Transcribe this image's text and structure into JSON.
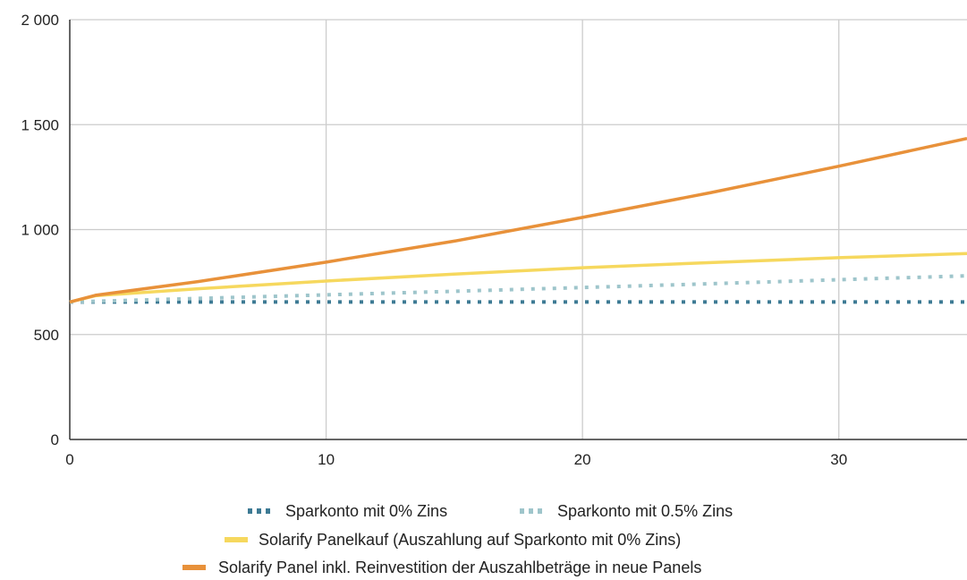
{
  "chart_data": {
    "type": "line",
    "title": "",
    "xlabel": "",
    "ylabel": "",
    "xlim": [
      0,
      35
    ],
    "ylim": [
      0,
      2000
    ],
    "x_ticks": [
      0,
      10,
      20,
      30
    ],
    "x_tick_labels": [
      "0",
      "10",
      "20",
      "30"
    ],
    "y_ticks": [
      0,
      500,
      1000,
      1500,
      2000
    ],
    "y_tick_labels": [
      "0",
      "500",
      "1 000",
      "1 500",
      "2 000"
    ],
    "grid": true,
    "legend_position": "bottom",
    "series": [
      {
        "name": "Sparkonto mit 0% Zins",
        "color": "#3d7a94",
        "style": "dotted",
        "x": [
          0,
          5,
          10,
          15,
          20,
          25,
          30,
          35
        ],
        "y": [
          655,
          655,
          655,
          655,
          655,
          655,
          655,
          655
        ]
      },
      {
        "name": "Sparkonto mit 0.5% Zins",
        "color": "#9ec5cb",
        "style": "dotted",
        "x": [
          0,
          5,
          10,
          15,
          20,
          25,
          30,
          35
        ],
        "y": [
          655,
          672,
          689,
          706,
          724,
          742,
          761,
          780
        ]
      },
      {
        "name": "Solarify Panelkauf (Auszahlung auf Sparkonto mit 0% Zins)",
        "color": "#f6d85e",
        "style": "solid",
        "x": [
          0,
          1,
          5,
          10,
          15,
          20,
          25,
          30,
          35
        ],
        "y": [
          655,
          685,
          718,
          755,
          788,
          818,
          843,
          866,
          886
        ]
      },
      {
        "name": "Solarify Panel inkl. Reinvestition der Auszahlbeträge in neue Panels",
        "color": "#e8913a",
        "style": "solid",
        "x": [
          0,
          1,
          5,
          10,
          15,
          20,
          25,
          30,
          35
        ],
        "y": [
          655,
          687,
          752,
          845,
          945,
          1058,
          1176,
          1302,
          1434
        ]
      }
    ]
  }
}
